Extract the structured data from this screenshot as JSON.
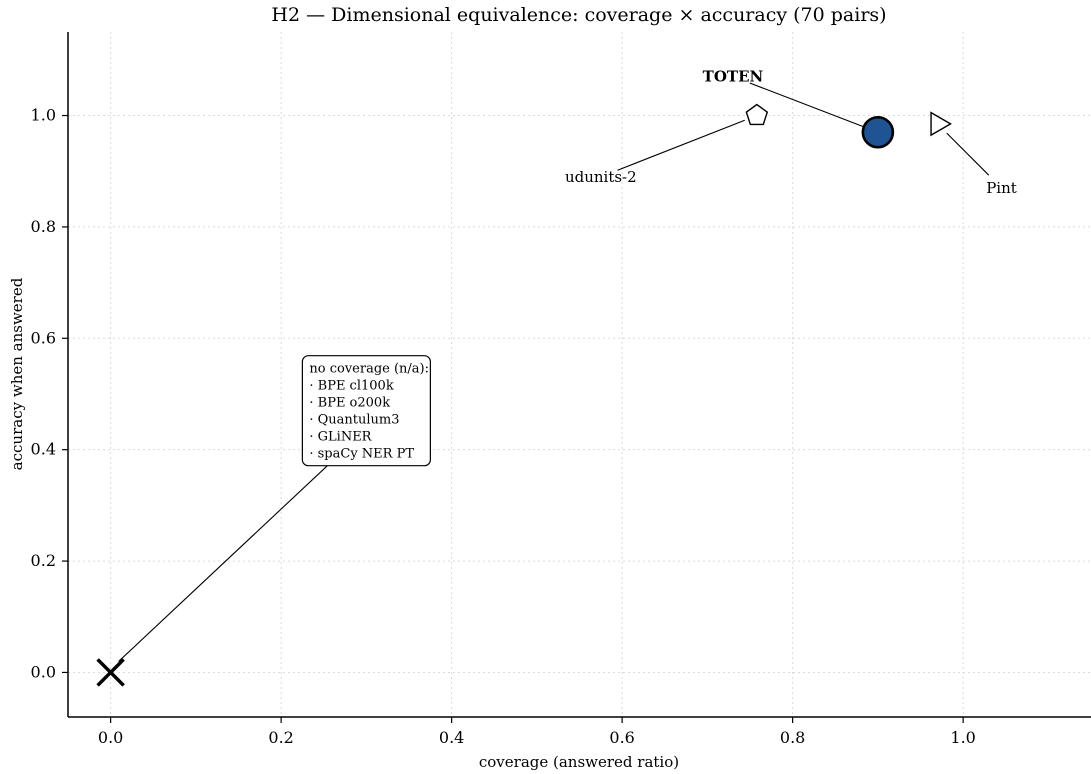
{
  "chart_data": {
    "type": "scatter",
    "title": "H2 — Dimensional equivalence: coverage × accuracy (70 pairs)",
    "xlabel": "coverage (answered ratio)",
    "ylabel": "accuracy when answered",
    "xlim": [
      -0.05,
      1.15
    ],
    "ylim": [
      -0.08,
      1.15
    ],
    "xticks": [
      0.0,
      0.2,
      0.4,
      0.6,
      0.8,
      1.0
    ],
    "yticks": [
      0.0,
      0.2,
      0.4,
      0.6,
      0.8,
      1.0
    ],
    "grid": true,
    "points": [
      {
        "label": "TOTEN",
        "x": 0.9,
        "y": 0.97,
        "marker": "circle",
        "color": "#1f5494",
        "bold": true,
        "label_x": 0.73,
        "label_y": 1.07
      },
      {
        "label": "udunits-2",
        "x": 0.758,
        "y": 1.0,
        "marker": "pentagon",
        "color": "#ffffff",
        "bold": false,
        "label_x": 0.575,
        "label_y": 0.89
      },
      {
        "label": "Pint",
        "x": 0.97,
        "y": 0.985,
        "marker": "triangle-right",
        "color": "#ffffff",
        "bold": false,
        "label_x": 1.045,
        "label_y": 0.87
      },
      {
        "label": "",
        "x": 0.0,
        "y": 0.0,
        "marker": "x",
        "color": "#000000",
        "bold": false
      }
    ],
    "no_coverage_box": {
      "anchor_x": 0.0,
      "anchor_y": 0.0,
      "box_x": 0.3,
      "box_y": 0.47,
      "lines": [
        "no coverage (n/a):",
        " · BPE cl100k",
        " · BPE o200k",
        " · Quantulum3",
        " · GLiNER",
        " · spaCy NER PT"
      ]
    }
  }
}
